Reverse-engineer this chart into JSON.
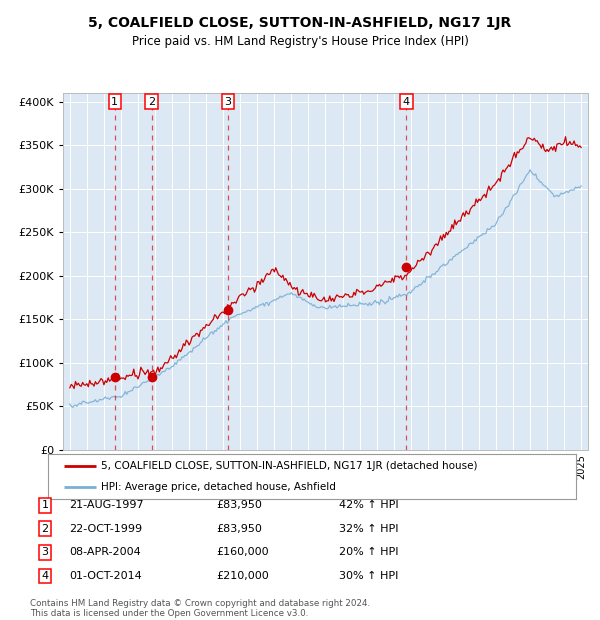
{
  "title": "5, COALFIELD CLOSE, SUTTON-IN-ASHFIELD, NG17 1JR",
  "subtitle": "Price paid vs. HM Land Registry's House Price Index (HPI)",
  "plot_bg": "#dce9f5",
  "sale_color": "#cc0000",
  "hpi_color": "#7bafd4",
  "ylim": [
    0,
    410000
  ],
  "yticks": [
    0,
    50000,
    100000,
    150000,
    200000,
    250000,
    300000,
    350000,
    400000
  ],
  "ytick_labels": [
    "£0",
    "£50K",
    "£100K",
    "£150K",
    "£200K",
    "£250K",
    "£300K",
    "£350K",
    "£400K"
  ],
  "sale_date_nums": [
    1997.64,
    1999.81,
    2004.27,
    2014.75
  ],
  "sale_prices": [
    83950,
    83950,
    160000,
    210000
  ],
  "sale_labels": [
    "1",
    "2",
    "3",
    "4"
  ],
  "legend_sale": "5, COALFIELD CLOSE, SUTTON-IN-ASHFIELD, NG17 1JR (detached house)",
  "legend_hpi": "HPI: Average price, detached house, Ashfield",
  "table_rows": [
    [
      "1",
      "21-AUG-1997",
      "£83,950",
      "42% ↑ HPI"
    ],
    [
      "2",
      "22-OCT-1999",
      "£83,950",
      "32% ↑ HPI"
    ],
    [
      "3",
      "08-APR-2004",
      "£160,000",
      "20% ↑ HPI"
    ],
    [
      "4",
      "01-OCT-2014",
      "£210,000",
      "30% ↑ HPI"
    ]
  ],
  "footer": "Contains HM Land Registry data © Crown copyright and database right 2024.\nThis data is licensed under the Open Government Licence v3.0."
}
